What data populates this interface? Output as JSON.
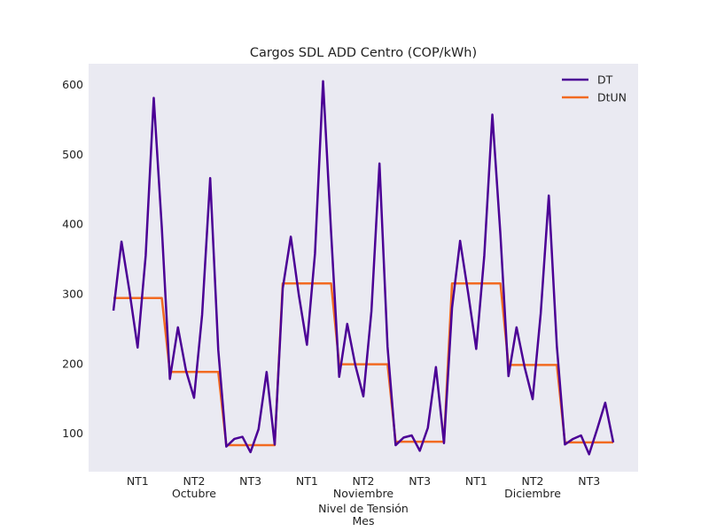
{
  "chart_data": {
    "type": "line",
    "title": "Cargos SDL ADD Centro (COP/kWh)",
    "xlabel_lines": [
      "Nivel de Tensión",
      "Mes"
    ],
    "ylim": [
      45,
      630
    ],
    "yticks": [
      100,
      200,
      300,
      400,
      500,
      600
    ],
    "grid": false,
    "legend_position": "top-right",
    "colors": {
      "background": "#eaeaf2",
      "DT": "#4b0095",
      "DtUN": "#f26a21"
    },
    "x_tick_labels": [
      "NT1",
      "NT2",
      "NT3",
      "NT1",
      "NT2",
      "NT3",
      "NT1",
      "NT2",
      "NT3"
    ],
    "month_labels": [
      "Octubre",
      "Noviembre",
      "Diciembre"
    ],
    "series": [
      {
        "name": "DT",
        "values": [
          276,
          375,
          303,
          223,
          355,
          581,
          395,
          178,
          252,
          190,
          151,
          270,
          466,
          220,
          81,
          92,
          95,
          73,
          106,
          188,
          84,
          308,
          382,
          298,
          227,
          358,
          605,
          388,
          181,
          257,
          198,
          153,
          275,
          487,
          224,
          83,
          94,
          97,
          75,
          108,
          195,
          86,
          280,
          376,
          301,
          221,
          355,
          557,
          385,
          182,
          252,
          195,
          149,
          272,
          441,
          225,
          84,
          92,
          97,
          70,
          106,
          144,
          87
        ]
      },
      {
        "name": "DtUN",
        "values": [
          294,
          294,
          294,
          294,
          294,
          294,
          294,
          188,
          188,
          188,
          188,
          188,
          188,
          188,
          83,
          83,
          83,
          83,
          83,
          83,
          83,
          315,
          315,
          315,
          315,
          315,
          315,
          315,
          199,
          199,
          199,
          199,
          199,
          199,
          199,
          88,
          88,
          88,
          88,
          88,
          88,
          88,
          315,
          315,
          315,
          315,
          315,
          315,
          315,
          198,
          198,
          198,
          198,
          198,
          198,
          198,
          87,
          87,
          87,
          87,
          87,
          87,
          87
        ]
      }
    ]
  }
}
